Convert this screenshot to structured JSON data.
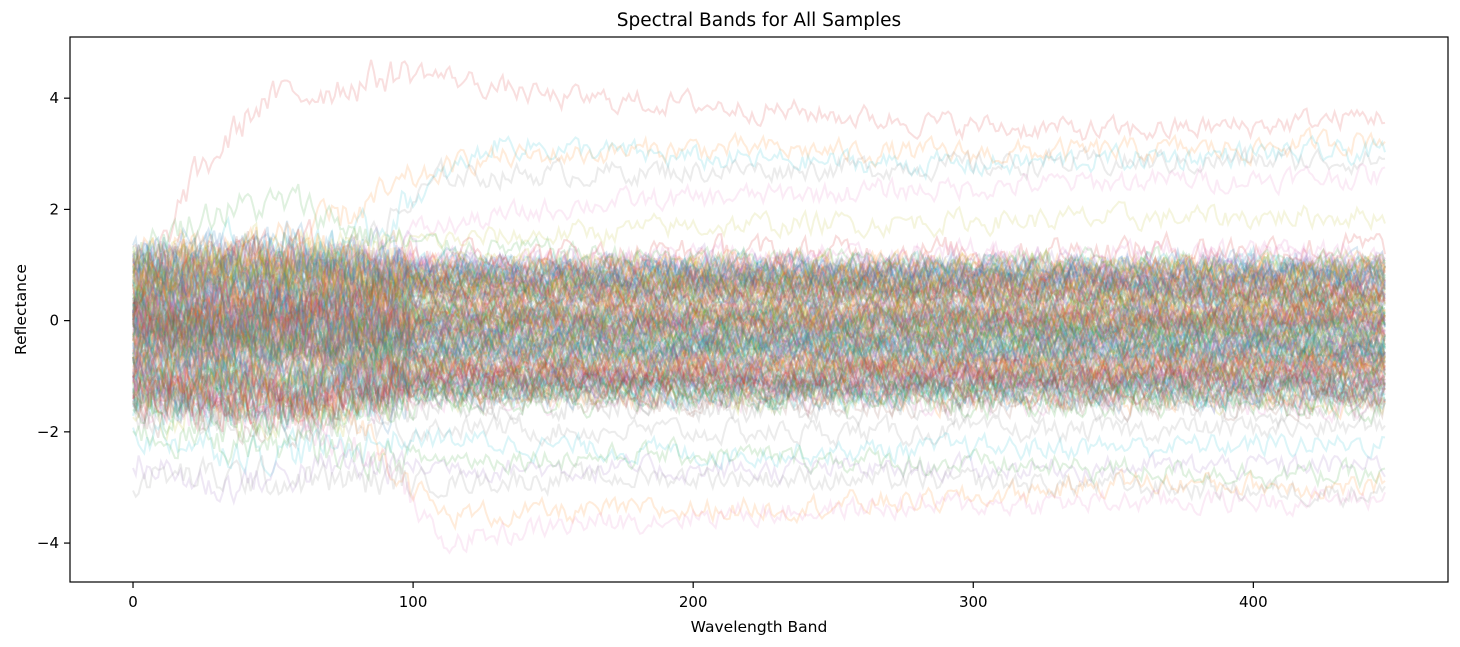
{
  "chart_data": {
    "type": "line",
    "title": "Spectral Bands for All Samples",
    "xlabel": "Wavelength Band",
    "ylabel": "Reflectance",
    "xlim": [
      -22.5,
      469.5
    ],
    "ylim": [
      -4.7,
      5.1
    ],
    "x_ticks": [
      0,
      100,
      200,
      300,
      400
    ],
    "x_tick_labels": [
      "0",
      "100",
      "200",
      "300",
      "400"
    ],
    "y_ticks": [
      -4,
      -2,
      0,
      2,
      4
    ],
    "y_tick_labels": [
      "−4",
      "−2",
      "0",
      "2",
      "4"
    ],
    "grid": false,
    "legend": "none",
    "band_range": [
      0,
      447
    ],
    "n_bands": 448,
    "line_alpha": 0.15,
    "color_cycle": [
      "#1f77b4",
      "#ff7f0e",
      "#2ca02c",
      "#d62728",
      "#9467bd",
      "#8c564b",
      "#e377c2",
      "#7f7f7f",
      "#bcbd22",
      "#17becf"
    ],
    "series": [
      {
        "color": "#d62728",
        "values": [
          [
            0,
            0.0
          ],
          [
            20,
            2.4
          ],
          [
            45,
            3.9
          ],
          [
            70,
            4.2
          ],
          [
            100,
            4.5
          ],
          [
            150,
            4.0
          ],
          [
            200,
            3.9
          ],
          [
            250,
            3.7
          ],
          [
            300,
            3.5
          ],
          [
            350,
            3.4
          ],
          [
            400,
            3.5
          ],
          [
            447,
            3.7
          ]
        ]
      },
      {
        "color": "#ff7f0e",
        "values": [
          [
            0,
            0.5
          ],
          [
            40,
            0.9
          ],
          [
            80,
            2.0
          ],
          [
            120,
            2.9
          ],
          [
            200,
            3.1
          ],
          [
            300,
            3.0
          ],
          [
            400,
            3.1
          ],
          [
            447,
            3.3
          ]
        ]
      },
      {
        "color": "#17becf",
        "values": [
          [
            0,
            0.3
          ],
          [
            60,
            0.6
          ],
          [
            100,
            2.2
          ],
          [
            130,
            3.2
          ],
          [
            200,
            2.9
          ],
          [
            300,
            2.8
          ],
          [
            400,
            3.0
          ],
          [
            447,
            3.0
          ]
        ]
      },
      {
        "color": "#7f7f7f",
        "values": [
          [
            0,
            0.6
          ],
          [
            80,
            1.2
          ],
          [
            110,
            2.6
          ],
          [
            200,
            2.7
          ],
          [
            300,
            2.8
          ],
          [
            447,
            2.9
          ]
        ]
      },
      {
        "color": "#e377c2",
        "values": [
          [
            0,
            0.2
          ],
          [
            100,
            1.6
          ],
          [
            160,
            2.1
          ],
          [
            250,
            2.3
          ],
          [
            350,
            2.5
          ],
          [
            447,
            2.6
          ]
        ]
      },
      {
        "color": "#bcbd22",
        "values": [
          [
            0,
            0.8
          ],
          [
            100,
            1.4
          ],
          [
            200,
            1.7
          ],
          [
            300,
            1.8
          ],
          [
            447,
            1.9
          ]
        ]
      },
      {
        "color": "#2ca02c",
        "values": [
          [
            0,
            1.2
          ],
          [
            30,
            2.0
          ],
          [
            60,
            2.1
          ],
          [
            90,
            1.4
          ],
          [
            200,
            1.1
          ],
          [
            447,
            1.1
          ]
        ]
      },
      {
        "color": "#1f77b4",
        "values": [
          [
            0,
            0.9
          ],
          [
            100,
            0.9
          ],
          [
            200,
            0.8
          ],
          [
            300,
            0.8
          ],
          [
            447,
            0.8
          ]
        ]
      },
      {
        "color": "#8c564b",
        "values": [
          [
            0,
            0.4
          ],
          [
            100,
            0.5
          ],
          [
            300,
            0.4
          ],
          [
            447,
            0.4
          ]
        ]
      },
      {
        "color": "#d62728",
        "values": [
          [
            0,
            0.0
          ],
          [
            100,
            0.1
          ],
          [
            300,
            0.0
          ],
          [
            447,
            0.1
          ]
        ]
      },
      {
        "color": "#9467bd",
        "values": [
          [
            0,
            -0.3
          ],
          [
            100,
            -0.2
          ],
          [
            300,
            -0.3
          ],
          [
            447,
            -0.2
          ]
        ]
      },
      {
        "color": "#1f77b4",
        "values": [
          [
            0,
            -0.6
          ],
          [
            100,
            -0.5
          ],
          [
            300,
            -0.5
          ],
          [
            447,
            -0.5
          ]
        ]
      },
      {
        "color": "#ff7f0e",
        "values": [
          [
            0,
            -0.9
          ],
          [
            100,
            -0.8
          ],
          [
            300,
            -0.8
          ],
          [
            447,
            -0.9
          ]
        ]
      },
      {
        "color": "#2ca02c",
        "values": [
          [
            0,
            -1.1
          ],
          [
            50,
            -1.6
          ],
          [
            100,
            -1.2
          ],
          [
            300,
            -1.1
          ],
          [
            447,
            -1.0
          ]
        ]
      },
      {
        "color": "#8c564b",
        "values": [
          [
            0,
            -1.3
          ],
          [
            100,
            -1.4
          ],
          [
            300,
            -1.5
          ],
          [
            447,
            -1.4
          ]
        ]
      },
      {
        "color": "#7f7f7f",
        "values": [
          [
            0,
            -1.6
          ],
          [
            100,
            -1.9
          ],
          [
            200,
            -2.0
          ],
          [
            300,
            -2.0
          ],
          [
            447,
            -1.9
          ]
        ]
      },
      {
        "color": "#17becf",
        "values": [
          [
            0,
            -2.0
          ],
          [
            50,
            -2.4
          ],
          [
            100,
            -2.1
          ],
          [
            200,
            -2.4
          ],
          [
            300,
            -2.3
          ],
          [
            447,
            -2.2
          ]
        ]
      },
      {
        "color": "#9467bd",
        "values": [
          [
            0,
            -2.5
          ],
          [
            30,
            -3.0
          ],
          [
            60,
            -2.7
          ],
          [
            100,
            -2.6
          ],
          [
            200,
            -2.7
          ],
          [
            447,
            -2.6
          ]
        ]
      },
      {
        "color": "#2ca02c",
        "values": [
          [
            0,
            -2.0
          ],
          [
            100,
            -2.5
          ],
          [
            200,
            -2.4
          ],
          [
            300,
            -2.6
          ],
          [
            447,
            -2.8
          ]
        ]
      },
      {
        "color": "#ff7f0e",
        "values": [
          [
            0,
            -0.8
          ],
          [
            80,
            -1.8
          ],
          [
            110,
            -3.5
          ],
          [
            200,
            -3.4
          ],
          [
            300,
            -3.2
          ],
          [
            350,
            -2.9
          ],
          [
            447,
            -3.0
          ]
        ]
      },
      {
        "color": "#e377c2",
        "values": [
          [
            0,
            -0.6
          ],
          [
            90,
            -2.5
          ],
          [
            110,
            -4.0
          ],
          [
            150,
            -3.7
          ],
          [
            200,
            -3.5
          ],
          [
            300,
            -3.3
          ],
          [
            447,
            -3.2
          ]
        ]
      },
      {
        "color": "#7f7f7f",
        "values": [
          [
            0,
            -2.8
          ],
          [
            100,
            -2.9
          ],
          [
            200,
            -2.8
          ],
          [
            300,
            -2.9
          ],
          [
            447,
            -3.1
          ]
        ]
      }
    ]
  }
}
